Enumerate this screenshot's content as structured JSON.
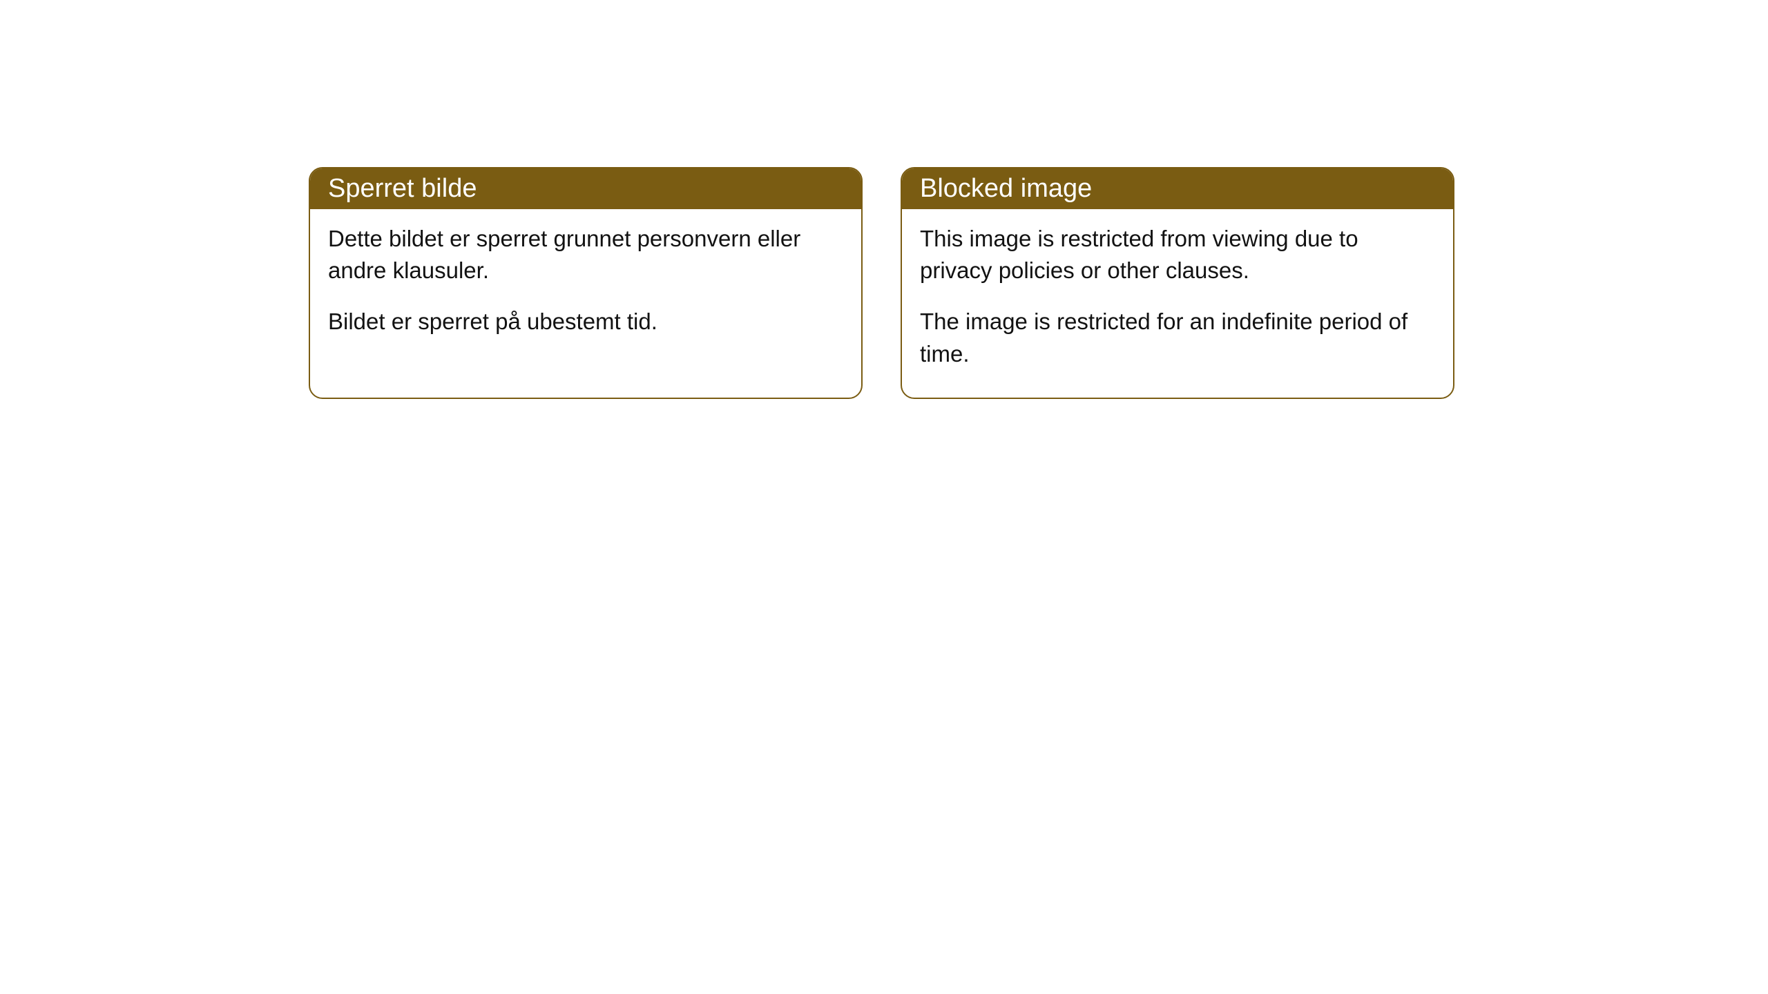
{
  "cards": [
    {
      "title": "Sperret bilde",
      "paragraph1": "Dette bildet er sperret grunnet personvern eller andre klausuler.",
      "paragraph2": "Bildet er sperret på ubestemt tid."
    },
    {
      "title": "Blocked image",
      "paragraph1": "This image is restricted from viewing due to privacy policies or other clauses.",
      "paragraph2": "The image is restricted for an indefinite period of time."
    }
  ],
  "style": {
    "header_background": "#7a5c12",
    "header_text_color": "#ffffff",
    "border_color": "#7a5c12",
    "body_background": "#ffffff",
    "body_text_color": "#121212",
    "border_radius": 20,
    "title_fontsize": 38,
    "body_fontsize": 33
  }
}
